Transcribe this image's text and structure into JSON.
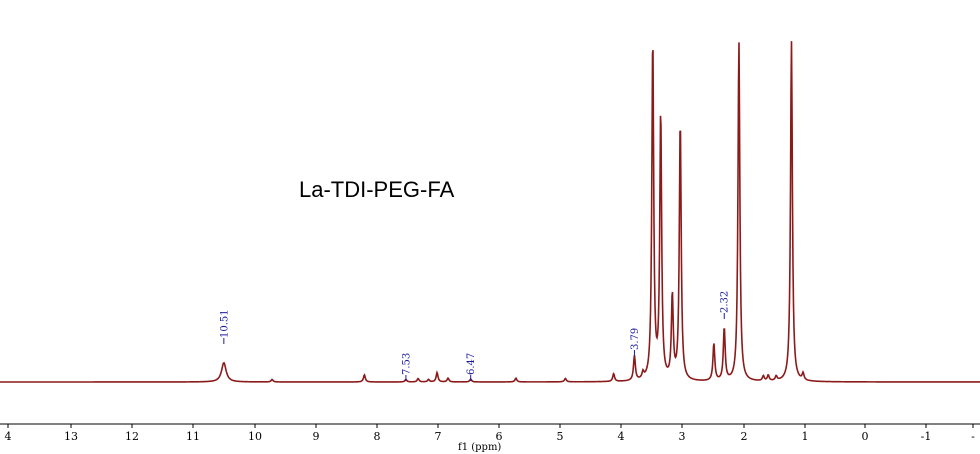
{
  "chart_data": {
    "type": "line",
    "title": "La-TDI-PEG-FA",
    "xlabel": "f1 (ppm)",
    "ylabel": "",
    "x_reversed": true,
    "xlim": [
      14.05,
      -2.0
    ],
    "ylim": [
      0,
      100
    ],
    "grid": false,
    "legend": "none",
    "tick_labels": [
      "4",
      "13",
      "12",
      "11",
      "10",
      "9",
      "8",
      "7",
      "6",
      "5",
      "4",
      "3",
      "2",
      "1",
      "0",
      "-1",
      "-"
    ],
    "peak_labels": [
      "10.51",
      "7.53",
      "6.47",
      "3.79",
      "2.32"
    ],
    "peaks": [
      {
        "x": 10.51,
        "y": 6.2
      },
      {
        "x": 9.72,
        "y": 0.8
      },
      {
        "x": 8.21,
        "y": 2.3
      },
      {
        "x": 7.53,
        "y": 0.8
      },
      {
        "x": 7.33,
        "y": 1.1
      },
      {
        "x": 7.16,
        "y": 0.8
      },
      {
        "x": 7.02,
        "y": 3.0
      },
      {
        "x": 6.84,
        "y": 1.2
      },
      {
        "x": 6.47,
        "y": 0.9
      },
      {
        "x": 5.73,
        "y": 1.2
      },
      {
        "x": 4.92,
        "y": 1.1
      },
      {
        "x": 4.13,
        "y": 2.5
      },
      {
        "x": 3.79,
        "y": 8.0
      },
      {
        "x": 3.65,
        "y": 2.0
      },
      {
        "x": 3.49,
        "y": 110.0
      },
      {
        "x": 3.36,
        "y": 86.0
      },
      {
        "x": 3.17,
        "y": 27.0
      },
      {
        "x": 3.04,
        "y": 84.0
      },
      {
        "x": 2.49,
        "y": 12.0
      },
      {
        "x": 2.32,
        "y": 17.0
      },
      {
        "x": 2.08,
        "y": 110.0
      },
      {
        "x": 1.68,
        "y": 1.6
      },
      {
        "x": 1.6,
        "y": 1.8
      },
      {
        "x": 1.47,
        "y": 1.4
      },
      {
        "x": 1.22,
        "y": 110.0
      },
      {
        "x": 1.03,
        "y": 2.2
      }
    ],
    "color": "#8b1a1a",
    "label_color": "#1a1aa0"
  }
}
